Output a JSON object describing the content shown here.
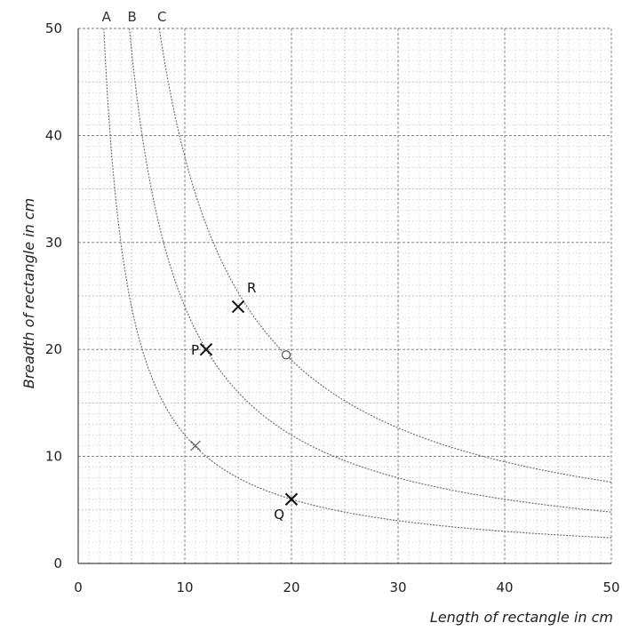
{
  "chart_data": {
    "type": "line",
    "xlabel": "Length of rectangle in cm",
    "ylabel": "Breadth of rectangle in cm",
    "xlim": [
      0,
      50
    ],
    "ylim": [
      0,
      50
    ],
    "x_ticks": [
      "0",
      "10",
      "20",
      "30",
      "40",
      "50"
    ],
    "y_ticks": [
      "0",
      "10",
      "20",
      "30",
      "40",
      "50"
    ],
    "grid": true,
    "series": [
      {
        "name": "A",
        "products": 120
      },
      {
        "name": "B",
        "products": 240
      },
      {
        "name": "C",
        "products": 380
      }
    ],
    "points": [
      {
        "label": "R",
        "x": 15,
        "y": 24,
        "marker": "X"
      },
      {
        "label": "P",
        "x": 12,
        "y": 20,
        "marker": "X"
      },
      {
        "label": "",
        "x": 19.5,
        "y": 19.5,
        "marker": "o"
      },
      {
        "label": "",
        "x": 11,
        "y": 11,
        "marker": "x"
      },
      {
        "label": "Q",
        "x": 20,
        "y": 6,
        "marker": "X"
      }
    ]
  }
}
